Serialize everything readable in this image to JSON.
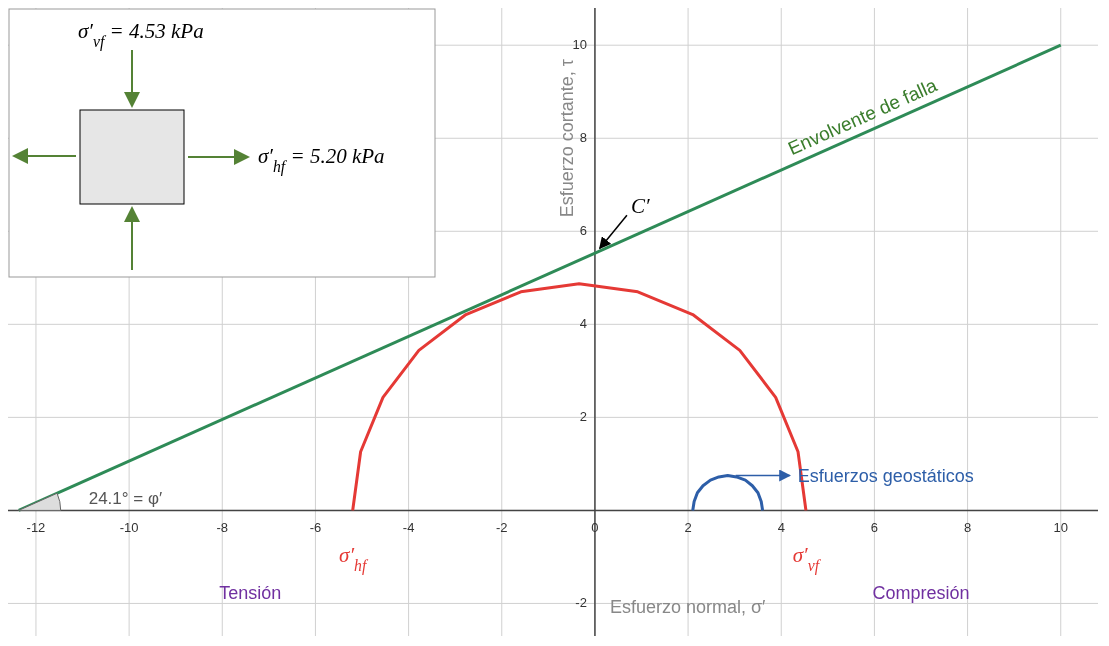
{
  "chart_data": {
    "type": "line",
    "xlabel": "Esfuerzo normal, σ′",
    "ylabel": "Esfuerzo cortante, τ",
    "xlim": [
      -12.6,
      10.8
    ],
    "ylim": [
      -2.7,
      10.8
    ],
    "xticks": [
      -12,
      -10,
      -8,
      -6,
      -4,
      -2,
      0,
      2,
      4,
      6,
      8,
      10
    ],
    "yticks": [
      -2,
      {
        "value": 0,
        "label": null
      },
      2,
      4,
      6,
      8,
      10
    ],
    "grid": true,
    "series": [
      {
        "color": "#2e8b57",
        "x": [
          -12.37,
          10
        ],
        "values": [
          0,
          10
        ]
      },
      {
        "color": "#e53935",
        "x": [
          -5.2,
          -5.03,
          -4.55,
          -3.78,
          -2.77,
          -1.59,
          -0.34,
          0.92,
          2.1,
          3.11,
          3.88,
          4.36,
          4.53
        ],
        "values": [
          0,
          1.26,
          2.43,
          3.44,
          4.21,
          4.7,
          4.87,
          4.7,
          4.21,
          3.44,
          2.43,
          1.26,
          0
        ]
      },
      {
        "color": "#2d5ea8",
        "x": [
          2.1,
          2.13,
          2.2,
          2.32,
          2.48,
          2.66,
          2.85,
          3.04,
          3.23,
          3.38,
          3.5,
          3.57,
          3.6
        ],
        "values": [
          0,
          0.19,
          0.38,
          0.53,
          0.65,
          0.72,
          0.75,
          0.72,
          0.65,
          0.53,
          0.38,
          0.19,
          0
        ]
      }
    ],
    "annotations": [
      "σ′$_{vf}$ = 4.53 kPa",
      "σ′$_{hf}$ = 5.20 kPa",
      {
        "text": "Envolvente de falla",
        "x": 5.8,
        "y": 8.12
      },
      {
        "text": "C′",
        "x": 0,
        "y": 5.53
      },
      "24.1° = φ′",
      {
        "text": "σ′$_{hf}$",
        "x": -5.2,
        "y": 0
      },
      {
        "text": "σ′$_{vf}$",
        "x": 4.53,
        "y": 0
      },
      "Esfuerzos geostáticos",
      "Tensión",
      "Compresión"
    ]
  }
}
